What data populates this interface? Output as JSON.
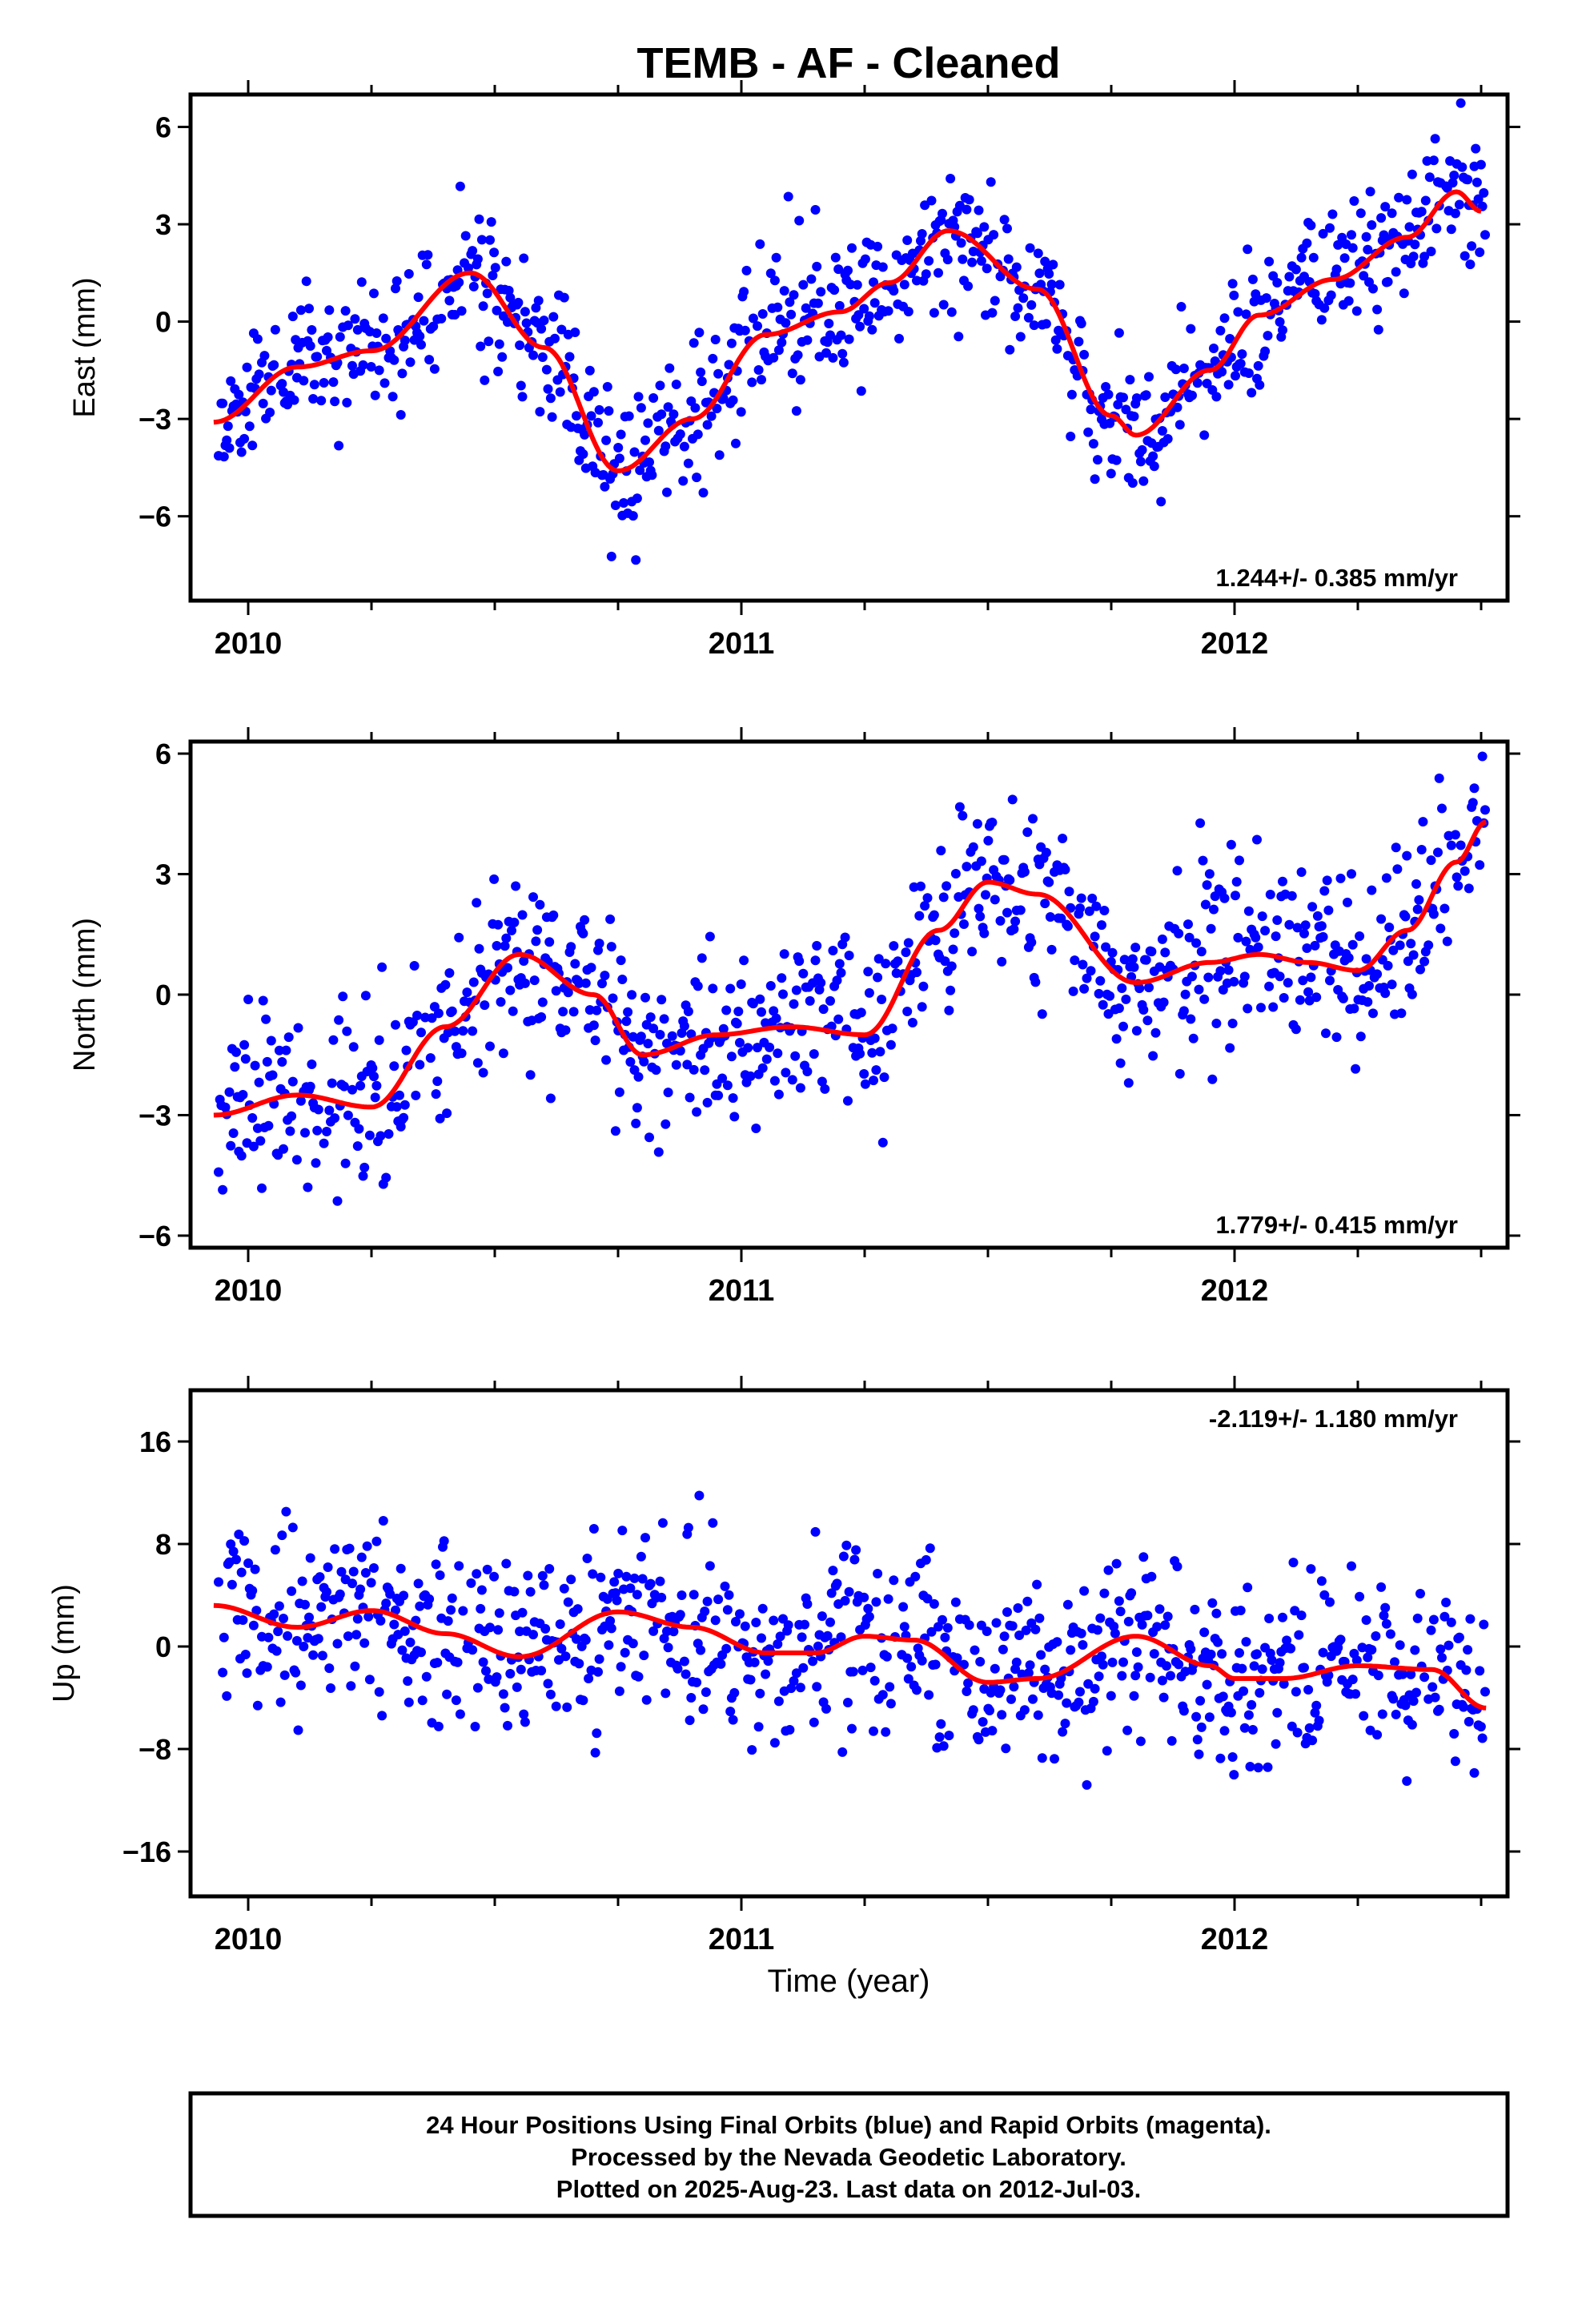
{
  "title": "TEMB  - AF - Cleaned",
  "colors": {
    "final_orbits": "#0000ff",
    "rapid_orbits": "#ff00ff",
    "model": "#ff0000",
    "frame": "#000000"
  },
  "chart_data": [
    {
      "type": "scatter",
      "ylabel": "East (mm)",
      "xlabel": "",
      "xlim": [
        2009.93,
        2012.55
      ],
      "ylim": [
        -8.6,
        7.0
      ],
      "x_ticks": [
        "2010",
        "2011",
        "2012"
      ],
      "y_ticks": [
        "6",
        "3",
        "0",
        "−3",
        "−6"
      ],
      "y_tick_values": [
        6,
        3,
        0,
        -3,
        -6
      ],
      "rate_text": "1.244+/- 0.385 mm/yr",
      "rate_position": "bottom-right",
      "noise": 1.1,
      "seed": 11,
      "model_curve": {
        "x": [
          2009.93,
          2010.1,
          2010.25,
          2010.45,
          2010.6,
          2010.75,
          2010.9,
          2011.05,
          2011.2,
          2011.3,
          2011.42,
          2011.6,
          2011.75,
          2011.8,
          2011.95,
          2012.05,
          2012.2,
          2012.35,
          2012.45,
          2012.5
        ],
        "y": [
          -3.1,
          -1.4,
          -0.9,
          1.5,
          -0.8,
          -4.6,
          -3.0,
          -0.4,
          0.3,
          1.2,
          2.8,
          1.0,
          -2.9,
          -3.5,
          -1.5,
          0.2,
          1.3,
          2.6,
          4.0,
          3.4
        ]
      },
      "series": [
        {
          "name": "Final Orbits",
          "color": "#0000ff"
        }
      ]
    },
    {
      "type": "scatter",
      "ylabel": "North (mm)",
      "xlabel": "",
      "xlim": [
        2009.93,
        2012.55
      ],
      "ylim": [
        -6.3,
        6.3
      ],
      "x_ticks": [
        "2010",
        "2011",
        "2012"
      ],
      "y_ticks": [
        "6",
        "3",
        "0",
        "−3",
        "−6"
      ],
      "y_tick_values": [
        6,
        3,
        0,
        -3,
        -6
      ],
      "rate_text": "1.779+/- 0.415 mm/yr",
      "rate_position": "bottom-right",
      "noise": 1.1,
      "seed": 23,
      "model_curve": {
        "x": [
          2009.93,
          2010.1,
          2010.25,
          2010.4,
          2010.55,
          2010.7,
          2010.8,
          2010.95,
          2011.1,
          2011.25,
          2011.4,
          2011.5,
          2011.6,
          2011.8,
          2011.95,
          2012.05,
          2012.15,
          2012.25,
          2012.35,
          2012.45,
          2012.51
        ],
        "y": [
          -3.0,
          -2.5,
          -2.8,
          -0.8,
          1.0,
          0.0,
          -1.5,
          -1.0,
          -0.8,
          -1.0,
          1.6,
          2.8,
          2.5,
          0.3,
          0.8,
          1.0,
          0.8,
          0.6,
          1.6,
          3.3,
          4.3
        ]
      },
      "series": [
        {
          "name": "Final Orbits",
          "color": "#0000ff"
        }
      ]
    },
    {
      "type": "scatter",
      "ylabel": "Up (mm)",
      "xlabel": "Time (year)",
      "xlim": [
        2009.93,
        2012.55
      ],
      "ylim": [
        -19.5,
        20.0
      ],
      "x_ticks": [
        "2010",
        "2011",
        "2012"
      ],
      "y_ticks": [
        "16",
        "8",
        "0",
        "−8",
        "−16"
      ],
      "y_tick_values": [
        16,
        8,
        0,
        -8,
        -16
      ],
      "rate_text": "-2.119+/- 1.180 mm/yr",
      "rate_position": "top-right",
      "noise": 3.4,
      "seed": 37,
      "model_curve": {
        "x": [
          2009.93,
          2010.1,
          2010.25,
          2010.4,
          2010.55,
          2010.75,
          2010.9,
          2011.05,
          2011.15,
          2011.25,
          2011.35,
          2011.5,
          2011.6,
          2011.8,
          2011.95,
          2012.0,
          2012.1,
          2012.25,
          2012.4,
          2012.51
        ],
        "y": [
          3.2,
          1.5,
          2.8,
          1.0,
          -0.8,
          2.7,
          1.5,
          -0.5,
          -0.5,
          0.8,
          0.5,
          -2.8,
          -2.5,
          0.8,
          -1.5,
          -2.5,
          -2.5,
          -1.5,
          -1.8,
          -4.8
        ]
      },
      "series": [
        {
          "name": "Final Orbits",
          "color": "#0000ff"
        }
      ]
    }
  ],
  "footer": {
    "line1": "24 Hour Positions Using Final Orbits (blue) and Rapid Orbits (magenta).",
    "line2": "Processed by the Nevada Geodetic Laboratory.",
    "line3": "Plotted on 2025-Aug-23. Last data on 2012-Jul-03."
  }
}
